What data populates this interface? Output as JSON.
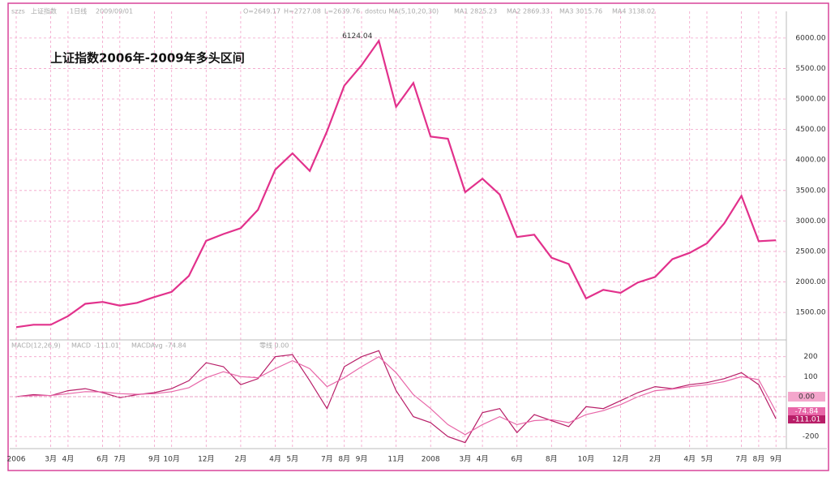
{
  "chart_data": [
    {
      "type": "line",
      "title": "上证指数2006年-2009年多头区间",
      "header": [
        "szzs",
        "1日线",
        "2009/09/01",
        "O=2649.17",
        "H=2727.08",
        "L=2639.76",
        "dostcu MA(5,10,20,30)",
        "MA1 2825.23",
        "MA2 2869.33",
        "MA3 3015.76",
        "MA4 3138.02"
      ],
      "annotation": "6124.04",
      "categories": [
        "2006",
        null,
        "3月",
        "4月",
        null,
        "6月",
        "7月",
        null,
        "9月",
        "10月",
        null,
        "12月",
        null,
        "2月",
        null,
        "4月",
        "5月",
        null,
        "7月",
        "8月",
        "9月",
        null,
        "11月",
        null,
        "2008",
        null,
        "3月",
        "4月",
        null,
        "6月",
        null,
        "8月",
        null,
        "10月",
        null,
        "12月",
        null,
        "2月",
        null,
        "4月",
        "5月",
        null,
        "7月",
        "8月",
        "9月"
      ],
      "series": [
        {
          "name": "上证指数",
          "color": "#e2318c",
          "values": [
            1258,
            1299,
            1298,
            1440,
            1641,
            1672,
            1612,
            1658,
            1752,
            1837,
            2099,
            2675,
            2786,
            2881,
            3183,
            3841,
            4109,
            3820,
            4471,
            5218,
            5552,
            5954,
            4871,
            5262,
            4383,
            4348,
            3472,
            3693,
            3433,
            2736,
            2775,
            2397,
            2293,
            1729,
            1871,
            1821,
            1991,
            2082,
            2373,
            2477,
            2633,
            2959,
            3412,
            2667,
            2683
          ]
        }
      ],
      "ylim": [
        1063,
        6437
      ],
      "yticks": [
        {
          "value": 1500,
          "label": "1500.00"
        },
        {
          "value": 2000,
          "label": "2000.00"
        },
        {
          "value": 2500,
          "label": "2500.00"
        },
        {
          "value": 3000,
          "label": "3000.00"
        },
        {
          "value": 3500,
          "label": "3500.00"
        },
        {
          "value": 4000,
          "label": "4000.00"
        },
        {
          "value": 4500,
          "label": "4500.00"
        },
        {
          "value": 5000,
          "label": "5000.00"
        },
        {
          "value": 5500,
          "label": "5500.00"
        },
        {
          "value": 6000,
          "label": "6000.00"
        }
      ],
      "grid": true
    },
    {
      "type": "line",
      "header": [
        "MACD(12,26,9)",
        "零线 0.00"
      ],
      "series": [
        {
          "name": "MACD",
          "color": "#b81e68",
          "last_label": "-111.01",
          "values": [
            0,
            10,
            5,
            30,
            40,
            20,
            -5,
            10,
            20,
            40,
            80,
            170,
            150,
            60,
            90,
            200,
            210,
            80,
            -60,
            150,
            200,
            230,
            30,
            -100,
            -130,
            -200,
            -230,
            -80,
            -60,
            -180,
            -90,
            -120,
            -150,
            -50,
            -60,
            -20,
            20,
            50,
            40,
            60,
            70,
            90,
            120,
            60,
            -111
          ]
        },
        {
          "name": "MACDAvg",
          "color": "#e866a8",
          "last_label": "-74.84",
          "values": [
            0,
            5,
            6,
            15,
            25,
            24,
            15,
            12,
            15,
            25,
            45,
            95,
            125,
            100,
            95,
            140,
            180,
            140,
            50,
            95,
            150,
            200,
            120,
            10,
            -60,
            -140,
            -190,
            -140,
            -100,
            -140,
            -120,
            -115,
            -130,
            -90,
            -70,
            -40,
            0,
            30,
            38,
            50,
            60,
            75,
            100,
            85,
            -75
          ]
        }
      ],
      "zero_label": "0.00",
      "ylim": [
        -260,
        280
      ],
      "yticks": [
        -200,
        100,
        200
      ],
      "grid": true
    }
  ]
}
